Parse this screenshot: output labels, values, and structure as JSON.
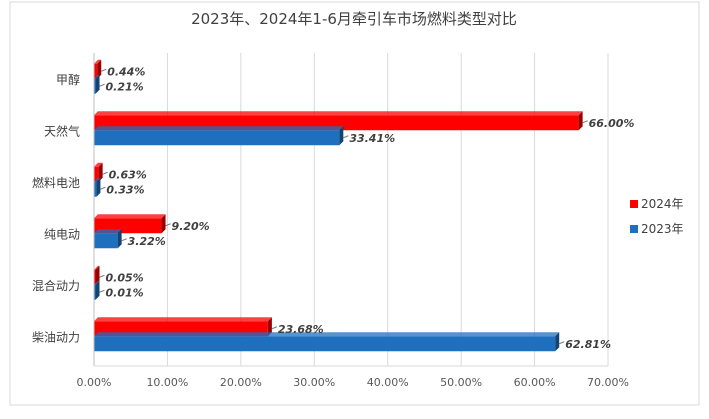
{
  "chart_data": {
    "type": "bar",
    "orientation": "horizontal",
    "title": "2023年、2024年1-6月牵引车市场燃料类型对比",
    "categories": [
      "甲醇",
      "天然气",
      "燃料电池",
      "纯电动",
      "混合动力",
      "柴油动力"
    ],
    "series": [
      {
        "name": "2024年",
        "values": [
          0.44,
          66.0,
          0.63,
          9.2,
          0.05,
          23.68
        ],
        "labels": [
          "0.44%",
          "66.00%",
          "0.63%",
          "9.20%",
          "0.05%",
          "23.68%"
        ]
      },
      {
        "name": "2023年",
        "values": [
          0.21,
          33.41,
          0.33,
          3.22,
          0.01,
          62.81
        ],
        "labels": [
          "0.21%",
          "33.41%",
          "0.33%",
          "3.22%",
          "0.01%",
          "62.81%"
        ]
      }
    ],
    "xticks": [
      "0.00%",
      "10.00%",
      "20.00%",
      "30.00%",
      "40.00%",
      "50.00%",
      "60.00%",
      "70.00%"
    ],
    "xlim": [
      0,
      70
    ],
    "grid": true,
    "legend_position": "right",
    "colors": {
      "2024年": "#ff0000",
      "2023年": "#1f6fbf"
    },
    "xlabel": "",
    "ylabel": ""
  }
}
